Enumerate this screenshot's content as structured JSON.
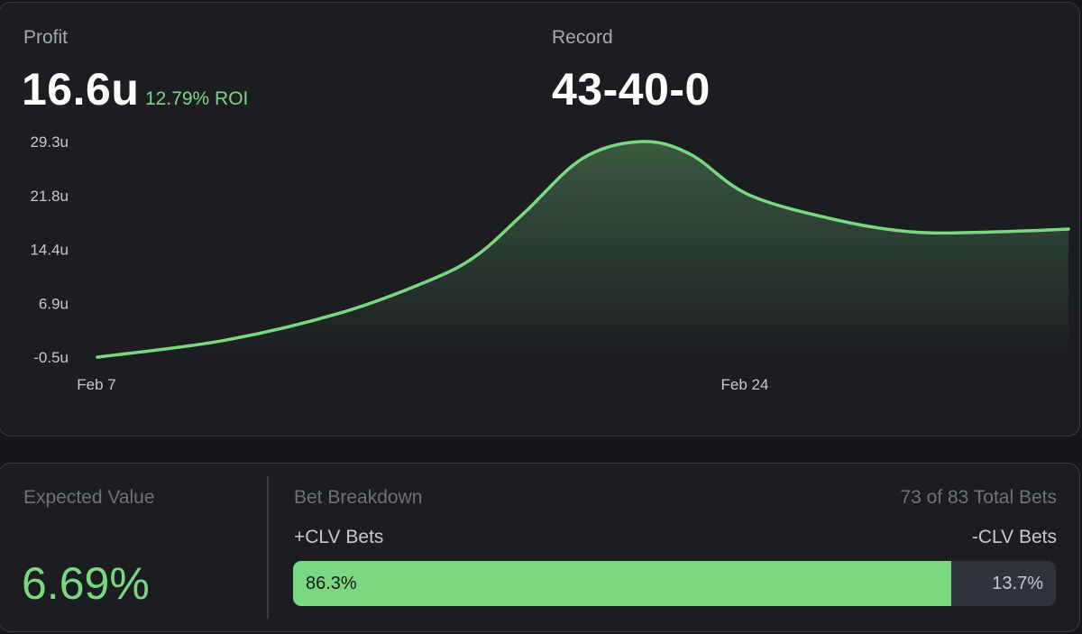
{
  "colors": {
    "accent_green": "#7ad880",
    "card_bg": "#1c1d21",
    "page_bg": "#151619",
    "muted_bar": "#30333c"
  },
  "summary": {
    "profit_label": "Profit",
    "profit_value": "16.6u",
    "roi_text": "12.79% ROI",
    "record_label": "Record",
    "record_value": "43-40-0"
  },
  "chart_data": {
    "type": "area",
    "title": "",
    "xlabel": "",
    "ylabel": "",
    "ylim": [
      -0.5,
      29.3
    ],
    "yticks": [
      "29.3u",
      "21.8u",
      "14.4u",
      "6.9u",
      "-0.5u"
    ],
    "xticks": [
      "Feb 7",
      "Feb 24"
    ],
    "series": [
      {
        "color": "#7ad880",
        "points": [
          {
            "t": 0.0,
            "y": -0.5
          },
          {
            "t": 0.13,
            "y": 1.8
          },
          {
            "t": 0.25,
            "y": 5.6
          },
          {
            "t": 0.34,
            "y": 10.0
          },
          {
            "t": 0.39,
            "y": 13.5
          },
          {
            "t": 0.44,
            "y": 19.5
          },
          {
            "t": 0.5,
            "y": 27.0
          },
          {
            "t": 0.56,
            "y": 29.3
          },
          {
            "t": 0.61,
            "y": 27.6
          },
          {
            "t": 0.67,
            "y": 22.0
          },
          {
            "t": 0.76,
            "y": 18.5
          },
          {
            "t": 0.84,
            "y": 16.8
          },
          {
            "t": 0.92,
            "y": 16.8
          },
          {
            "t": 1.0,
            "y": 17.2
          }
        ]
      }
    ],
    "grid": false
  },
  "expected_value": {
    "label": "Expected Value",
    "value": "6.69%"
  },
  "bet_breakdown": {
    "label": "Bet Breakdown",
    "total_text": "73 of 83 Total Bets",
    "positive_label": "+CLV Bets",
    "negative_label": "-CLV Bets",
    "positive_pct_text": "86.3%",
    "negative_pct_text": "13.7%",
    "positive_fraction": 0.863
  }
}
